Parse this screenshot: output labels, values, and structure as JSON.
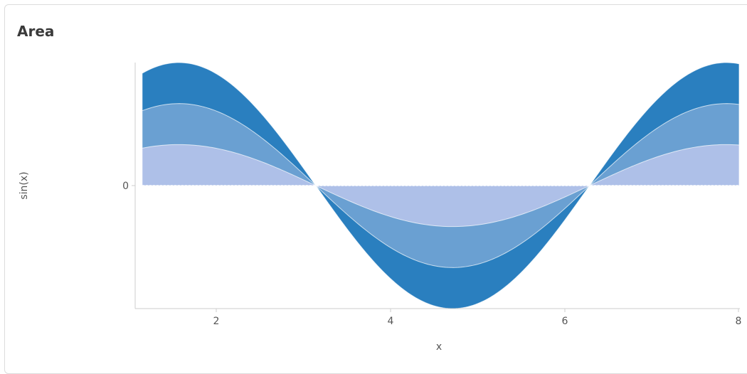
{
  "panel": {
    "title": "Area"
  },
  "chart_data": {
    "type": "area",
    "stacked": true,
    "title": "Area",
    "xlabel": "x",
    "ylabel": "sin(x)",
    "xlim": [
      1.15,
      8.0
    ],
    "ylim": [
      -1.55,
      1.55
    ],
    "x_ticks": [
      2,
      4,
      6,
      8
    ],
    "y_ticks": [
      0
    ],
    "baseline": 0,
    "function": "sin(x)",
    "series": [
      {
        "layer": 1,
        "fraction": 0.3333,
        "color": "#aec0e8"
      },
      {
        "layer": 2,
        "fraction": 0.3333,
        "color": "#6aa0d2"
      },
      {
        "layer": 3,
        "fraction": 0.3334,
        "color": "#2a7fbf"
      }
    ],
    "cumulative_amplitude_at_peak": [
      0.48,
      0.98,
      1.47
    ],
    "grid": false,
    "legend": "none"
  }
}
